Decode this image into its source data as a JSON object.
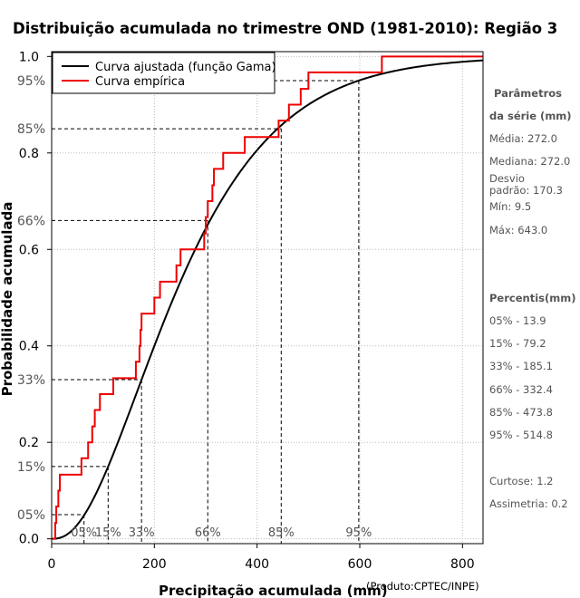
{
  "chart_data": {
    "type": "line",
    "title": "Distribuição acumulada no trimestre OND (1981-2010): Região 3",
    "xlabel": "Precipitação acumulada (mm)",
    "ylabel": "Probabilidade acumulada",
    "credit": "(Produto:CPTEC/INPE)",
    "xlim": [
      0,
      840
    ],
    "ylim": [
      -0.01,
      1.01
    ],
    "x_ticks": [
      0,
      200,
      400,
      600,
      800
    ],
    "y_ticks": [
      0.0,
      0.2,
      0.4,
      0.6,
      0.8,
      1.0
    ],
    "y_ticks_labels": [
      "0.0",
      "0.2",
      "0.4",
      "0.6",
      "0.8",
      "1.0"
    ],
    "legend": {
      "position": "top-left",
      "entries": [
        {
          "label": "Curva ajustada (função Gama)",
          "color": "#000000"
        },
        {
          "label": "Curva empírica",
          "color": "#ee0000"
        }
      ]
    },
    "gamma_fit": {
      "shape": 2.56,
      "scale": 106.25,
      "color": "#000000"
    },
    "empirical": {
      "color": "#ee0000",
      "x": [
        0,
        7,
        9,
        13,
        16,
        58,
        71,
        79,
        84,
        94,
        120,
        164,
        171,
        173,
        175,
        200,
        211,
        243,
        251,
        297,
        300,
        304,
        313,
        316,
        334,
        376,
        442,
        462,
        485,
        500,
        535,
        643,
        840
      ],
      "y": [
        0.0,
        0.033,
        0.067,
        0.1,
        0.133,
        0.167,
        0.2,
        0.233,
        0.267,
        0.3,
        0.333,
        0.367,
        0.4,
        0.433,
        0.467,
        0.5,
        0.533,
        0.567,
        0.6,
        0.633,
        0.667,
        0.7,
        0.733,
        0.767,
        0.8,
        0.833,
        0.867,
        0.9,
        0.933,
        0.967,
        0.967,
        1.0,
        1.0
      ]
    },
    "percentiles": [
      {
        "label": "05%",
        "p": 0.05,
        "value": 13.9,
        "axis_label": "05%"
      },
      {
        "label": "15%",
        "p": 0.15,
        "value": 79.2,
        "axis_label": "15%"
      },
      {
        "label": "33%",
        "p": 0.33,
        "value": 185.1,
        "axis_label": "33%"
      },
      {
        "label": "66%",
        "p": 0.66,
        "value": 332.4,
        "axis_label": "66%"
      },
      {
        "label": "85%",
        "p": 0.85,
        "value": 473.8,
        "axis_label": "85%"
      },
      {
        "label": "95%",
        "p": 0.95,
        "value": 514.8,
        "axis_label": "95%"
      }
    ],
    "guide_x": [
      63,
      110,
      175,
      304,
      447,
      598
    ],
    "side_panel": {
      "params_title_1": "Parâmetros",
      "params_title_2": "da série (mm)",
      "media": "Média: 272.0",
      "mediana": "Mediana: 272.0",
      "desvio_1": "Desvio",
      "desvio_2": "padrão: 170.3",
      "min": "Mín: 9.5",
      "max": "Máx: 643.0",
      "percentis_title": "Percentis(mm)",
      "p05": "05% - 13.9",
      "p15": "15% - 79.2",
      "p33": "33% - 185.1",
      "p66": "66% - 332.4",
      "p85": "85% - 473.8",
      "p95": "95% - 514.8",
      "curtose": "Curtose: 1.2",
      "assimetria": "Assimetria: 0.2"
    }
  }
}
